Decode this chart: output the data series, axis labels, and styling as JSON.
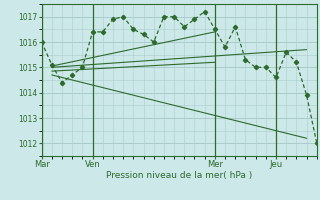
{
  "background_color": "#cce8e8",
  "grid_color": "#aacccc",
  "line_color": "#2d6a2d",
  "ylim": [
    1011.5,
    1017.5
  ],
  "yticks": [
    1012,
    1013,
    1014,
    1015,
    1016,
    1017
  ],
  "xlabel": "Pression niveau de la mer( hPa )",
  "day_labels": [
    "Mar",
    "Ven",
    "Mer",
    "Jeu"
  ],
  "day_positions": [
    0,
    5,
    17,
    23
  ],
  "vline_positions": [
    0,
    5,
    17,
    23
  ],
  "main_x": [
    0,
    1,
    2,
    3,
    4,
    5,
    6,
    7,
    8,
    9,
    10,
    11,
    12,
    13,
    14,
    15,
    16,
    17,
    18,
    19,
    20,
    21,
    22,
    23,
    24,
    25,
    26,
    27
  ],
  "main_y": [
    1016.0,
    1015.1,
    1014.4,
    1014.7,
    1015.0,
    1016.4,
    1016.4,
    1016.9,
    1017.0,
    1016.5,
    1016.3,
    1016.0,
    1017.0,
    1017.0,
    1016.6,
    1016.9,
    1017.2,
    1016.5,
    1015.8,
    1016.6,
    1015.3,
    1015.0,
    1015.0,
    1014.6,
    1015.6,
    1015.2,
    1013.9,
    1012.0
  ],
  "trend_lines": [
    {
      "x": [
        1,
        17
      ],
      "y": [
        1015.05,
        1016.4
      ]
    },
    {
      "x": [
        1,
        26
      ],
      "y": [
        1015.0,
        1015.7
      ]
    },
    {
      "x": [
        1,
        26
      ],
      "y": [
        1014.7,
        1012.2
      ]
    },
    {
      "x": [
        1,
        17
      ],
      "y": [
        1014.85,
        1015.2
      ]
    }
  ],
  "xlim": [
    0,
    27
  ]
}
